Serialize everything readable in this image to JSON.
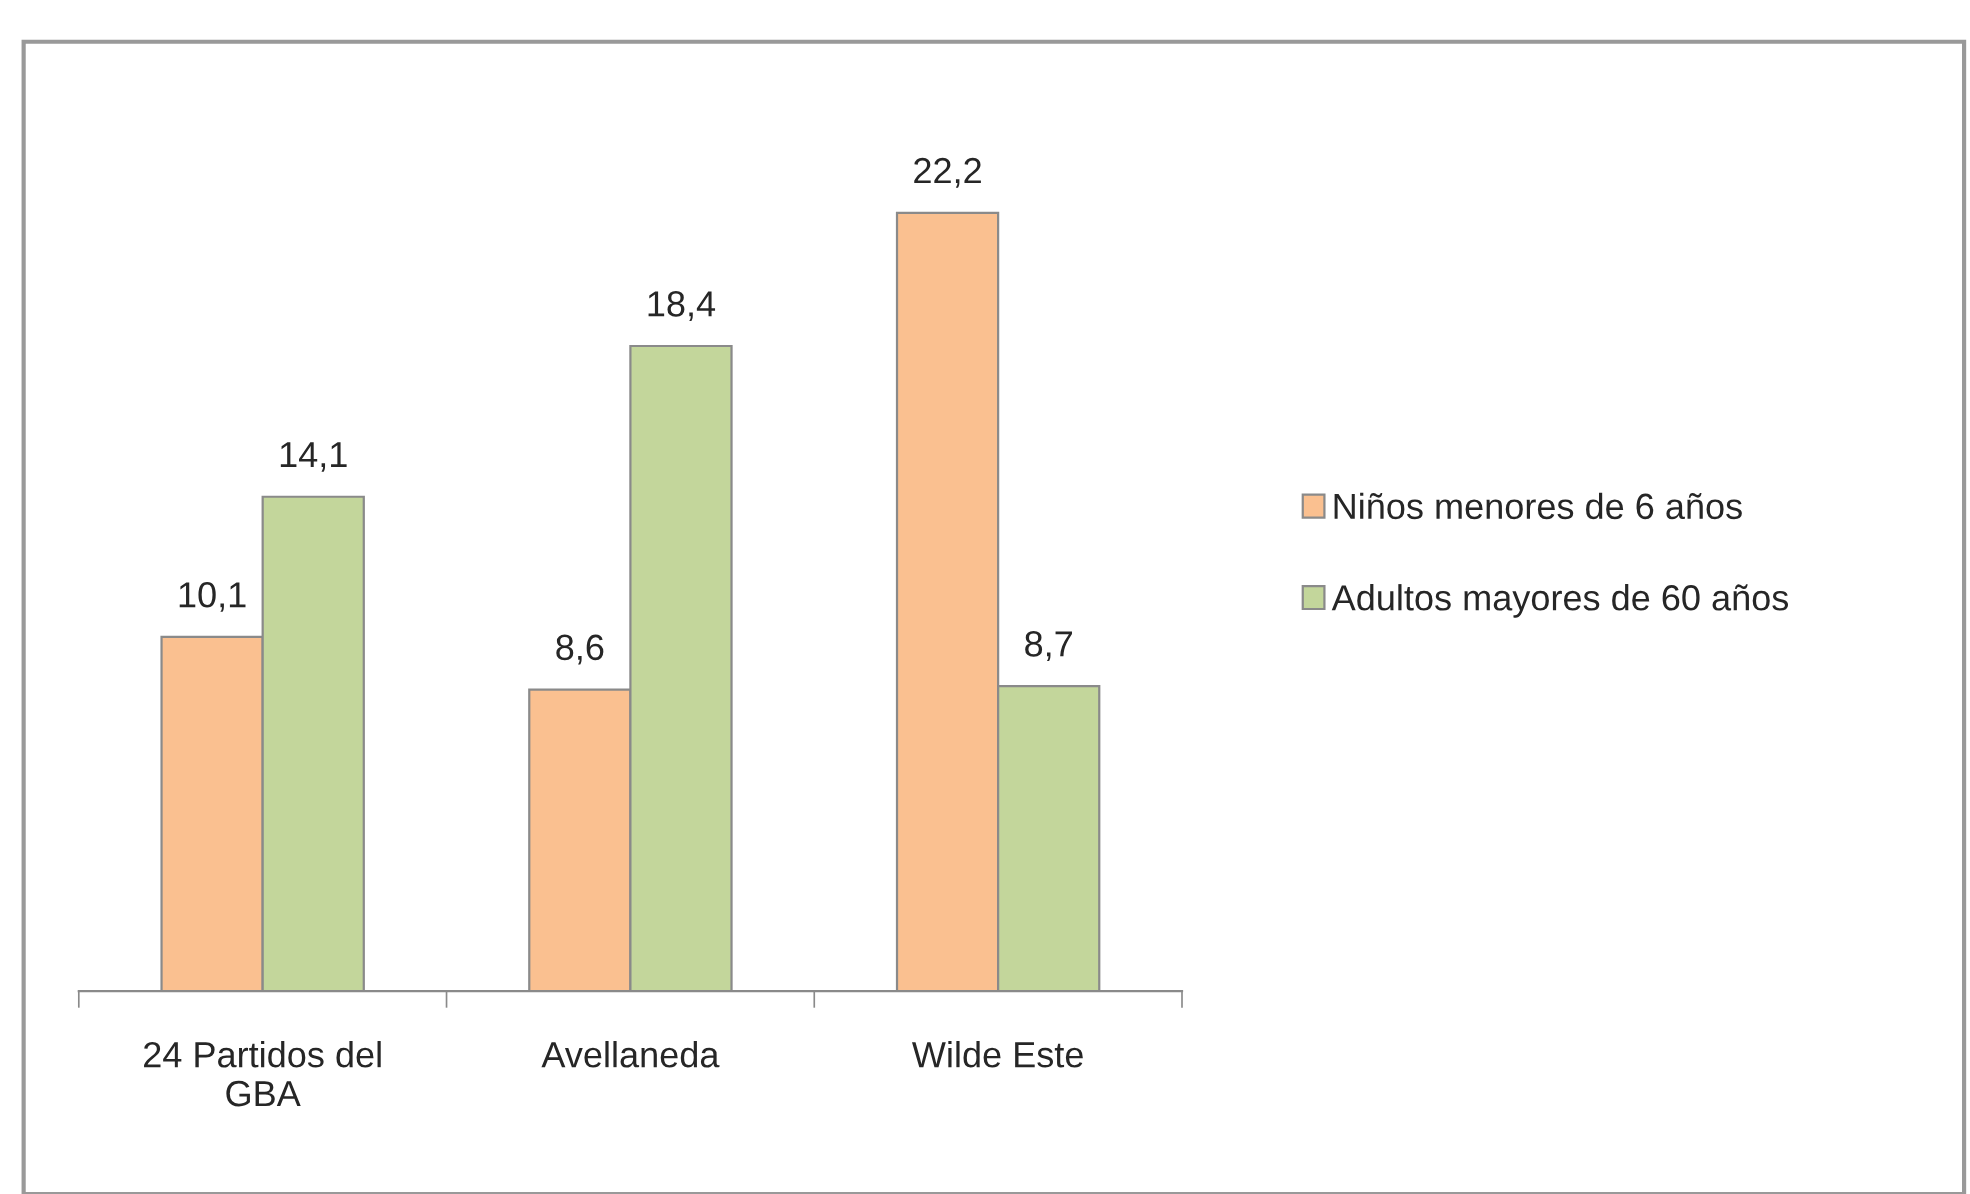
{
  "chart_data": {
    "type": "bar",
    "categories": [
      "24 Partidos del GBA",
      "Avellaneda",
      "Wilde Este"
    ],
    "series": [
      {
        "name": "Niños menores de 6 años",
        "color": "#fac090",
        "values": [
          10.1,
          8.6,
          22.2
        ],
        "value_labels": [
          "10,1",
          "8,6",
          "22,2"
        ]
      },
      {
        "name": "Adultos mayores de 60 años",
        "color": "#c3d69b",
        "values": [
          14.1,
          18.4,
          8.7
        ],
        "value_labels": [
          "14,1",
          "18,4",
          "8,7"
        ]
      }
    ],
    "legend": "right",
    "grid": false
  }
}
